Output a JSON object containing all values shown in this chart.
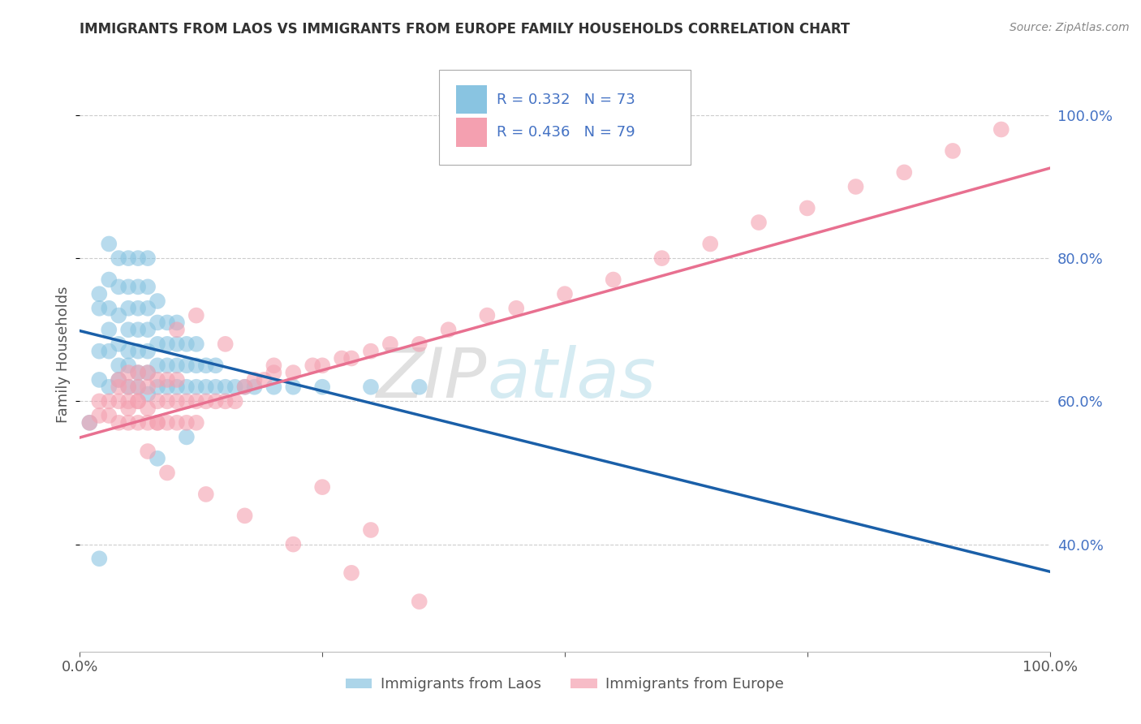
{
  "title": "IMMIGRANTS FROM LAOS VS IMMIGRANTS FROM EUROPE FAMILY HOUSEHOLDS CORRELATION CHART",
  "source": "Source: ZipAtlas.com",
  "ylabel": "Family Households",
  "color_laos": "#89c4e1",
  "color_europe": "#f4a0b0",
  "color_laos_line": "#1a5fa8",
  "color_europe_line": "#e87090",
  "legend_R_laos": "R = 0.332",
  "legend_N_laos": "N = 73",
  "legend_R_europe": "R = 0.436",
  "legend_N_europe": "N = 79",
  "watermark_zip": "ZIP",
  "watermark_atlas": "atlas",
  "ytick_positions": [
    0.4,
    0.6,
    0.8,
    1.0
  ],
  "ytick_labels": [
    "40.0%",
    "60.0%",
    "80.0%",
    "100.0%"
  ],
  "laos_x": [
    0.01,
    0.02,
    0.02,
    0.02,
    0.02,
    0.03,
    0.03,
    0.03,
    0.03,
    0.03,
    0.03,
    0.04,
    0.04,
    0.04,
    0.04,
    0.04,
    0.04,
    0.05,
    0.05,
    0.05,
    0.05,
    0.05,
    0.05,
    0.05,
    0.06,
    0.06,
    0.06,
    0.06,
    0.06,
    0.06,
    0.06,
    0.07,
    0.07,
    0.07,
    0.07,
    0.07,
    0.07,
    0.07,
    0.08,
    0.08,
    0.08,
    0.08,
    0.08,
    0.09,
    0.09,
    0.09,
    0.09,
    0.1,
    0.1,
    0.1,
    0.1,
    0.11,
    0.11,
    0.11,
    0.12,
    0.12,
    0.12,
    0.13,
    0.13,
    0.14,
    0.14,
    0.15,
    0.16,
    0.17,
    0.18,
    0.2,
    0.22,
    0.25,
    0.3,
    0.35,
    0.02,
    0.08,
    0.11
  ],
  "laos_y": [
    0.57,
    0.63,
    0.67,
    0.73,
    0.75,
    0.62,
    0.67,
    0.7,
    0.73,
    0.77,
    0.82,
    0.63,
    0.65,
    0.68,
    0.72,
    0.76,
    0.8,
    0.62,
    0.65,
    0.67,
    0.7,
    0.73,
    0.76,
    0.8,
    0.62,
    0.64,
    0.67,
    0.7,
    0.73,
    0.76,
    0.8,
    0.61,
    0.64,
    0.67,
    0.7,
    0.73,
    0.76,
    0.8,
    0.62,
    0.65,
    0.68,
    0.71,
    0.74,
    0.62,
    0.65,
    0.68,
    0.71,
    0.62,
    0.65,
    0.68,
    0.71,
    0.62,
    0.65,
    0.68,
    0.62,
    0.65,
    0.68,
    0.62,
    0.65,
    0.62,
    0.65,
    0.62,
    0.62,
    0.62,
    0.62,
    0.62,
    0.62,
    0.62,
    0.62,
    0.62,
    0.38,
    0.52,
    0.55
  ],
  "europe_x": [
    0.01,
    0.02,
    0.02,
    0.03,
    0.03,
    0.04,
    0.04,
    0.04,
    0.05,
    0.05,
    0.05,
    0.05,
    0.05,
    0.06,
    0.06,
    0.06,
    0.06,
    0.07,
    0.07,
    0.07,
    0.07,
    0.08,
    0.08,
    0.08,
    0.09,
    0.09,
    0.09,
    0.1,
    0.1,
    0.1,
    0.11,
    0.11,
    0.12,
    0.12,
    0.13,
    0.14,
    0.15,
    0.16,
    0.17,
    0.18,
    0.19,
    0.2,
    0.22,
    0.24,
    0.25,
    0.27,
    0.28,
    0.3,
    0.32,
    0.35,
    0.38,
    0.42,
    0.45,
    0.5,
    0.55,
    0.6,
    0.65,
    0.7,
    0.75,
    0.8,
    0.85,
    0.9,
    0.95,
    0.1,
    0.12,
    0.15,
    0.2,
    0.08,
    0.25,
    0.3,
    0.04,
    0.06,
    0.07,
    0.09,
    0.13,
    0.17,
    0.22,
    0.28,
    0.35
  ],
  "europe_y": [
    0.57,
    0.58,
    0.6,
    0.58,
    0.6,
    0.57,
    0.6,
    0.63,
    0.57,
    0.59,
    0.62,
    0.64,
    0.6,
    0.57,
    0.6,
    0.62,
    0.64,
    0.57,
    0.59,
    0.62,
    0.64,
    0.57,
    0.6,
    0.63,
    0.57,
    0.6,
    0.63,
    0.57,
    0.6,
    0.63,
    0.57,
    0.6,
    0.57,
    0.6,
    0.6,
    0.6,
    0.6,
    0.6,
    0.62,
    0.63,
    0.63,
    0.64,
    0.64,
    0.65,
    0.65,
    0.66,
    0.66,
    0.67,
    0.68,
    0.68,
    0.7,
    0.72,
    0.73,
    0.75,
    0.77,
    0.8,
    0.82,
    0.85,
    0.87,
    0.9,
    0.92,
    0.95,
    0.98,
    0.7,
    0.72,
    0.68,
    0.65,
    0.57,
    0.48,
    0.42,
    0.62,
    0.6,
    0.53,
    0.5,
    0.47,
    0.44,
    0.4,
    0.36,
    0.32
  ]
}
